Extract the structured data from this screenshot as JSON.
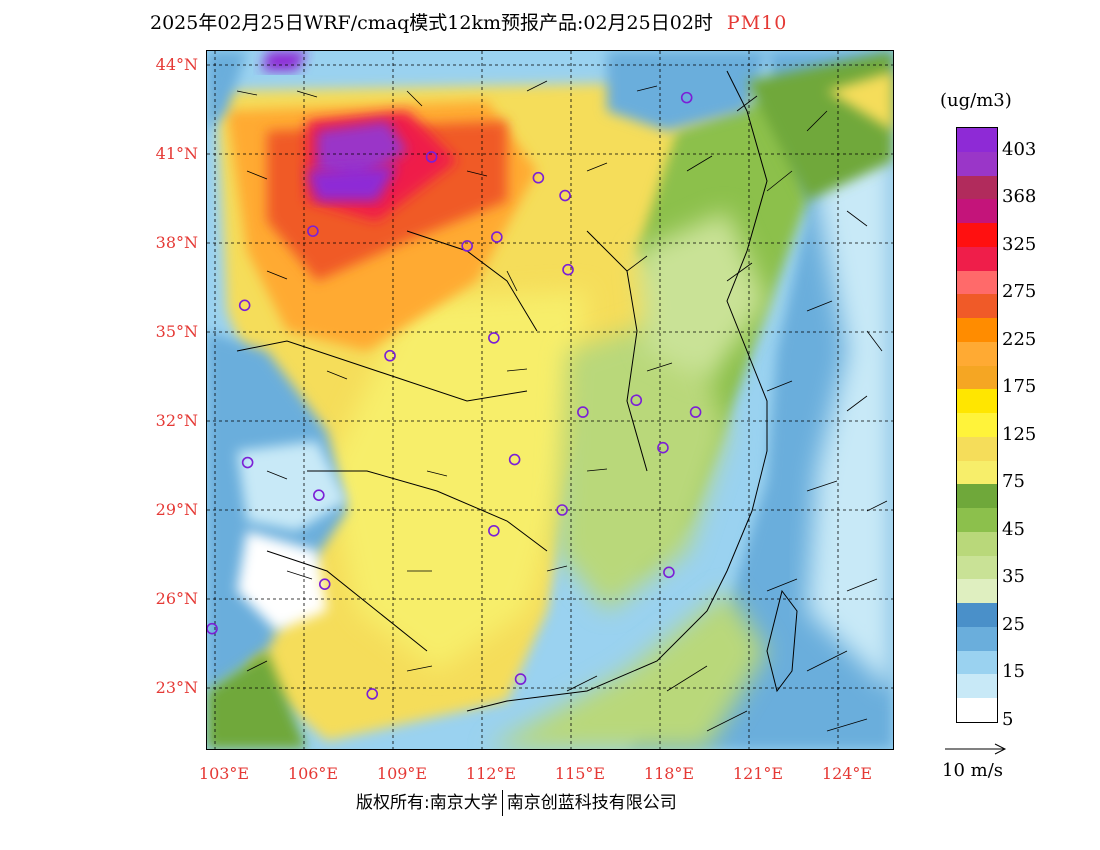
{
  "title": {
    "main": "2025年02月25日WRF/cmaq模式12km预报产品:02月25日02时",
    "product": "PM10"
  },
  "axes": {
    "lat_labels": [
      "44°N",
      "41°N",
      "38°N",
      "35°N",
      "32°N",
      "29°N",
      "26°N",
      "23°N"
    ],
    "lon_labels": [
      "103°E",
      "106°E",
      "109°E",
      "112°E",
      "115°E",
      "118°E",
      "121°E",
      "124°E"
    ]
  },
  "legend": {
    "unit": "(ug/m3)",
    "labels": [
      "403",
      "368",
      "325",
      "275",
      "225",
      "175",
      "125",
      "75",
      "45",
      "35",
      "25",
      "15",
      "5"
    ],
    "colors": [
      "#8e2ad6",
      "#9a36c8",
      "#b12b5c",
      "#c4147a",
      "#ff1010",
      "#ef1e4a",
      "#ff6a6a",
      "#f05a28",
      "#ff8c00",
      "#ffaa33",
      "#f5a623",
      "#ffe600",
      "#fff33a",
      "#f5dd5a",
      "#f7ee6a",
      "#6fa83a",
      "#8cc04c",
      "#b9d87a",
      "#c9e296",
      "#dfefc0",
      "#4a90c9",
      "#6aaedc",
      "#9ad2f0",
      "#c8e9f7",
      "#ffffff"
    ]
  },
  "wind": {
    "reference_label": "10 m/s"
  },
  "stations": [
    {
      "lon": 118.9,
      "lat": 42.9
    },
    {
      "lon": 110.3,
      "lat": 40.9
    },
    {
      "lon": 113.9,
      "lat": 40.2
    },
    {
      "lon": 114.8,
      "lat": 39.6
    },
    {
      "lon": 106.3,
      "lat": 38.4
    },
    {
      "lon": 111.5,
      "lat": 37.9
    },
    {
      "lon": 112.5,
      "lat": 38.2
    },
    {
      "lon": 114.9,
      "lat": 37.1
    },
    {
      "lon": 104.0,
      "lat": 35.9
    },
    {
      "lon": 112.4,
      "lat": 34.8
    },
    {
      "lon": 108.9,
      "lat": 34.2
    },
    {
      "lon": 115.4,
      "lat": 32.3
    },
    {
      "lon": 117.2,
      "lat": 32.7
    },
    {
      "lon": 119.2,
      "lat": 32.3
    },
    {
      "lon": 104.1,
      "lat": 30.6
    },
    {
      "lon": 113.1,
      "lat": 30.7
    },
    {
      "lon": 118.1,
      "lat": 31.1
    },
    {
      "lon": 106.5,
      "lat": 29.5
    },
    {
      "lon": 114.7,
      "lat": 29.0
    },
    {
      "lon": 112.4,
      "lat": 28.3
    },
    {
      "lon": 106.7,
      "lat": 26.5
    },
    {
      "lon": 118.3,
      "lat": 26.9
    },
    {
      "lon": 102.9,
      "lat": 25.0
    },
    {
      "lon": 108.3,
      "lat": 22.8
    },
    {
      "lon": 113.3,
      "lat": 23.3
    }
  ],
  "footer": {
    "copyright": "版权所有:南京大学",
    "company": "南京创蓝科技有限公司"
  }
}
